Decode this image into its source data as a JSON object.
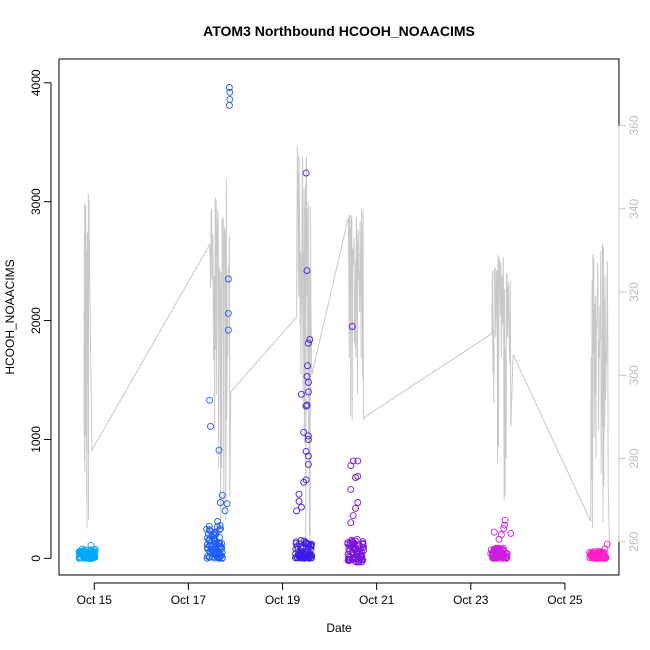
{
  "chart_data": {
    "type": "scatter",
    "title": "ATOM3 Northbound HCOOH_NOAACIMS",
    "xlabel": "Date",
    "ylabel": "HCOOH_NOAACIMS",
    "x_ticks": [
      "Oct 15",
      "Oct 17",
      "Oct 19",
      "Oct 21",
      "Oct 23",
      "Oct 25"
    ],
    "x_tick_days": [
      15,
      17,
      19,
      21,
      23,
      25
    ],
    "xlim_days": [
      14.25,
      26.15
    ],
    "ylim": [
      -140,
      4200
    ],
    "y_ticks": [
      0,
      1000,
      2000,
      3000,
      4000
    ],
    "y2_ticks": [
      260,
      280,
      300,
      320,
      340,
      360
    ],
    "y2lim": [
      252,
      376
    ],
    "y2_color": "#c8c8c8",
    "grid": false,
    "point_style": "open circle",
    "flights": [
      {
        "day": 14.85,
        "color": "#00a8ff",
        "base": [
          0,
          80
        ],
        "outliers": [
          [
            14.93,
            110
          ]
        ]
      },
      {
        "day": 17.55,
        "color": "#1e5cff",
        "base": [
          0,
          280
        ],
        "outliers": [
          [
            17.62,
            310
          ],
          [
            17.68,
            470
          ],
          [
            17.72,
            530
          ],
          [
            17.78,
            400
          ],
          [
            17.82,
            460
          ],
          [
            17.45,
            1330
          ],
          [
            17.47,
            1110
          ],
          [
            17.65,
            910
          ],
          [
            17.85,
            2350
          ],
          [
            17.85,
            2060
          ],
          [
            17.85,
            1920
          ],
          [
            17.87,
            3960
          ],
          [
            17.88,
            3920
          ],
          [
            17.88,
            3860
          ],
          [
            17.87,
            3810
          ]
        ]
      },
      {
        "day": 19.45,
        "color": "#3a1de8",
        "base": [
          0,
          160
        ],
        "outliers": [
          [
            19.3,
            400
          ],
          [
            19.35,
            540
          ],
          [
            19.35,
            480
          ],
          [
            19.4,
            430
          ],
          [
            19.45,
            640
          ],
          [
            19.5,
            660
          ],
          [
            19.55,
            790
          ],
          [
            19.5,
            900
          ],
          [
            19.45,
            1060
          ],
          [
            19.55,
            1030
          ],
          [
            19.55,
            1000
          ],
          [
            19.55,
            860
          ],
          [
            19.4,
            1380
          ],
          [
            19.5,
            1280
          ],
          [
            19.52,
            1290
          ],
          [
            19.55,
            1400
          ],
          [
            19.52,
            1530
          ],
          [
            19.55,
            1480
          ],
          [
            19.53,
            1620
          ],
          [
            19.55,
            1810
          ],
          [
            19.58,
            1840
          ],
          [
            19.52,
            2420
          ],
          [
            19.5,
            3240
          ]
        ]
      },
      {
        "day": 20.55,
        "color": "#7a12e0",
        "base": [
          -30,
          160
        ],
        "outliers": [
          [
            20.45,
            300
          ],
          [
            20.5,
            360
          ],
          [
            20.55,
            420
          ],
          [
            20.6,
            470
          ],
          [
            20.45,
            580
          ],
          [
            20.55,
            680
          ],
          [
            20.6,
            690
          ],
          [
            20.45,
            780
          ],
          [
            20.5,
            820
          ],
          [
            20.6,
            820
          ],
          [
            20.48,
            1950
          ]
        ]
      },
      {
        "day": 23.6,
        "color": "#cc1ee0",
        "base": [
          0,
          90
        ],
        "outliers": [
          [
            23.5,
            220
          ],
          [
            23.65,
            200
          ],
          [
            23.85,
            210
          ],
          [
            23.7,
            250
          ],
          [
            23.72,
            280
          ],
          [
            23.73,
            320
          ],
          [
            23.6,
            160
          ]
        ]
      },
      {
        "day": 25.7,
        "color": "#ff1ec8",
        "base": [
          0,
          60
        ],
        "outliers": [
          [
            25.85,
            80
          ],
          [
            25.9,
            120
          ],
          [
            25.8,
            40
          ]
        ]
      }
    ]
  }
}
